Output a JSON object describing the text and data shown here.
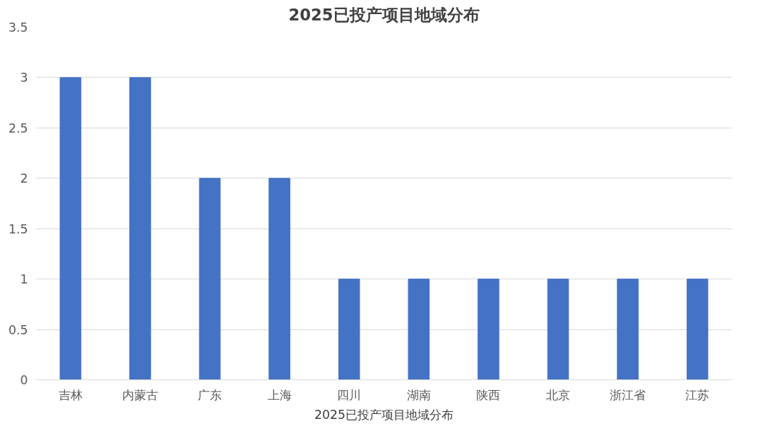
{
  "chart_data": {
    "type": "bar",
    "title": "2025已投产项目地域分布",
    "xlabel": "2025已投产项目地域分布",
    "categories": [
      "吉林",
      "内蒙古",
      "广东",
      "上海",
      "四川",
      "湖南",
      "陕西",
      "北京",
      "浙江省",
      "江苏"
    ],
    "values": [
      3,
      3,
      2,
      2,
      1,
      1,
      1,
      1,
      1,
      1
    ],
    "color": "#4472c4",
    "ylim": [
      0,
      3.5
    ],
    "yticks": [
      0,
      0.5,
      1,
      1.5,
      2,
      2.5,
      3,
      3.5
    ],
    "grid": "y"
  }
}
